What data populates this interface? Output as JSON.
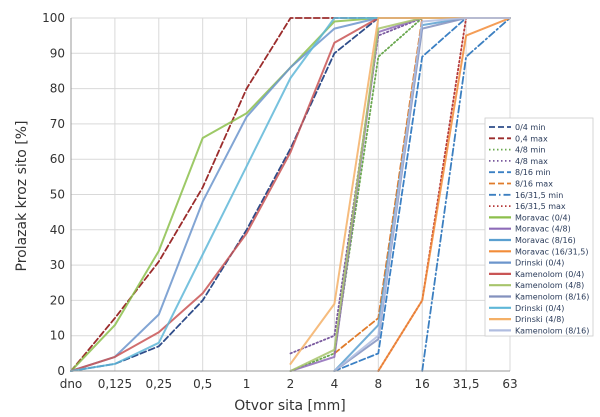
{
  "chart_data": {
    "type": "line",
    "title": "",
    "xlabel": "Otvor sita [mm]",
    "ylabel": "Prolazak kroz sito [%]",
    "x": [
      "dno",
      "0,125",
      "0,25",
      "0,5",
      "1",
      "2",
      "4",
      "8",
      "16",
      "31,5",
      "63"
    ],
    "ylim": [
      0,
      100
    ],
    "y_ticks": [
      "0",
      "10",
      "20",
      "30",
      "40",
      "50",
      "60",
      "70",
      "80",
      "90",
      "100"
    ],
    "grid": true,
    "legend_position": "right",
    "series": [
      {
        "name": "0/4 min",
        "color": "#2f4d8a",
        "dash": "dash",
        "values": [
          0,
          2,
          7,
          20,
          40,
          63,
          90,
          100,
          100,
          100,
          100
        ]
      },
      {
        "name": "0,4 max",
        "color": "#9b2c2c",
        "dash": "dash",
        "values": [
          0,
          15,
          31,
          52,
          80,
          100,
          100,
          100,
          100,
          100,
          100
        ]
      },
      {
        "name": "4/8 min",
        "color": "#6aa84f",
        "dash": "dot",
        "values": [
          null,
          null,
          null,
          null,
          null,
          0,
          5,
          89,
          100,
          100,
          100
        ]
      },
      {
        "name": "4/8 max",
        "color": "#7a5a9e",
        "dash": "dot",
        "values": [
          null,
          null,
          null,
          null,
          null,
          5,
          10,
          95,
          100,
          100,
          100
        ]
      },
      {
        "name": "8/16 min",
        "color": "#3b80c4",
        "dash": "dash",
        "values": [
          null,
          null,
          null,
          null,
          null,
          null,
          0,
          5,
          89,
          100,
          100
        ]
      },
      {
        "name": "8/16 max",
        "color": "#e07b2a",
        "dash": "dash",
        "values": [
          null,
          null,
          null,
          null,
          null,
          null,
          5,
          15,
          100,
          100,
          100
        ]
      },
      {
        "name": "16/31,5 min",
        "color": "#3c7fc0",
        "dash": "dashdot",
        "values": [
          null,
          null,
          null,
          null,
          null,
          null,
          null,
          null,
          0,
          89,
          100
        ]
      },
      {
        "name": "16/31,5 max",
        "color": "#b53a3a",
        "dash": "dot",
        "values": [
          null,
          null,
          null,
          null,
          null,
          null,
          null,
          0,
          20,
          100,
          100
        ]
      },
      {
        "name": "Moravac (0/4)",
        "color": "#8cbf4c",
        "dash": "solid",
        "values": [
          0,
          13,
          34,
          66,
          73,
          86,
          99,
          100,
          100,
          100,
          100
        ]
      },
      {
        "name": "Moravac (4/8)",
        "color": "#8e6bb8",
        "dash": "solid",
        "values": [
          null,
          null,
          null,
          null,
          null,
          0,
          4,
          96,
          100,
          100,
          100
        ]
      },
      {
        "name": "Moravac (8/16)",
        "color": "#5aa0d0",
        "dash": "solid",
        "values": [
          null,
          null,
          null,
          null,
          null,
          null,
          0,
          13,
          98,
          100,
          100
        ]
      },
      {
        "name": "Moravac (16/31,5)",
        "color": "#f28c38",
        "dash": "solid",
        "values": [
          null,
          null,
          null,
          null,
          null,
          null,
          null,
          0,
          20,
          95,
          100
        ]
      },
      {
        "name": "Drinski (0/4)",
        "color": "#6c95cc",
        "dash": "solid",
        "values": [
          0,
          4,
          16,
          48,
          72,
          86,
          97,
          100,
          100,
          100,
          100
        ]
      },
      {
        "name": "Kamenolom (0/4)",
        "color": "#c95555",
        "dash": "solid",
        "values": [
          0,
          4,
          11,
          22,
          39,
          62,
          93,
          100,
          100,
          100,
          100
        ]
      },
      {
        "name": "Kamenolom (4/8)",
        "color": "#a7c46b",
        "dash": "solid",
        "values": [
          null,
          null,
          null,
          null,
          null,
          0,
          6,
          97,
          100,
          100,
          100
        ]
      },
      {
        "name": "Kamenolom (8/16)",
        "color": "#8391be",
        "dash": "solid",
        "values": [
          null,
          null,
          null,
          null,
          null,
          null,
          0,
          9,
          97,
          100,
          100
        ]
      },
      {
        "name": "Drinski (0/4)",
        "color": "#5fb7d8",
        "dash": "solid",
        "values": [
          0,
          2,
          8,
          33,
          58,
          83,
          100,
          100,
          100,
          100,
          100
        ]
      },
      {
        "name": "Drinski (4/8)",
        "color": "#f4b067",
        "dash": "solid",
        "values": [
          null,
          null,
          null,
          null,
          null,
          2,
          19,
          100,
          100,
          100,
          100
        ]
      },
      {
        "name": "Kamenolom (8/16)",
        "color": "#b0bde0",
        "dash": "solid",
        "values": [
          null,
          null,
          null,
          null,
          null,
          null,
          0,
          10,
          99,
          100,
          100
        ]
      }
    ]
  }
}
